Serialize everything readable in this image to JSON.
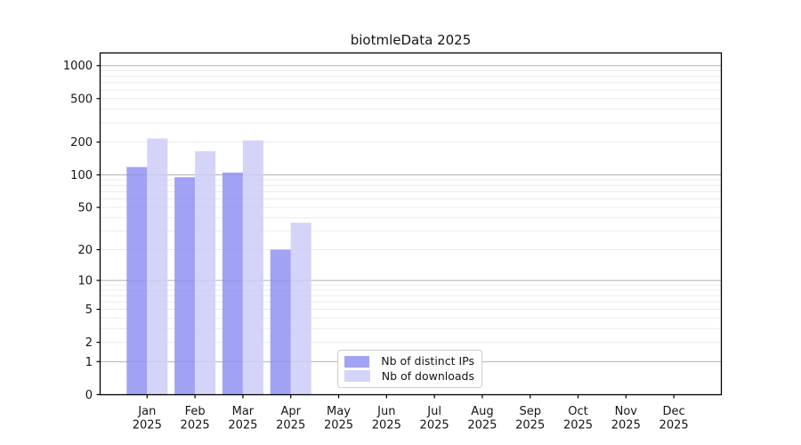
{
  "figure": {
    "background": "#ffffff"
  },
  "chart_data": {
    "type": "bar",
    "title": "biotmleData 2025",
    "categories": [
      "Jan",
      "Feb",
      "Mar",
      "Apr",
      "May",
      "Jun",
      "Jul",
      "Aug",
      "Sep",
      "Oct",
      "Nov",
      "Dec"
    ],
    "category_year": "2025",
    "series": [
      {
        "name": "Nb of distinct IPs",
        "color": "#9292f2",
        "fill_opacity": 0.85,
        "values": [
          118,
          95,
          105,
          20,
          null,
          null,
          null,
          null,
          null,
          null,
          null,
          null
        ]
      },
      {
        "name": "Nb of downloads",
        "color": "#cdcdf7",
        "fill_opacity": 0.85,
        "values": [
          216,
          165,
          207,
          36,
          null,
          null,
          null,
          null,
          null,
          null,
          null,
          null
        ]
      }
    ],
    "y_ticks": [
      0,
      1,
      2,
      5,
      10,
      20,
      50,
      100,
      200,
      500,
      1000
    ],
    "y_scale": "log1p",
    "ylim": [
      0,
      1250
    ],
    "grid": {
      "horizontal": true,
      "vertical": false,
      "major_values": [
        1,
        10,
        100,
        1000
      ],
      "major_color": "#b1b1b1",
      "minor_color": "#ebebeb"
    },
    "axis_color": "#000000",
    "tick_label_color": "#151515",
    "legend": {
      "position": "inside-bottom-center",
      "items": [
        "Nb of distinct IPs",
        "Nb of downloads"
      ]
    }
  }
}
